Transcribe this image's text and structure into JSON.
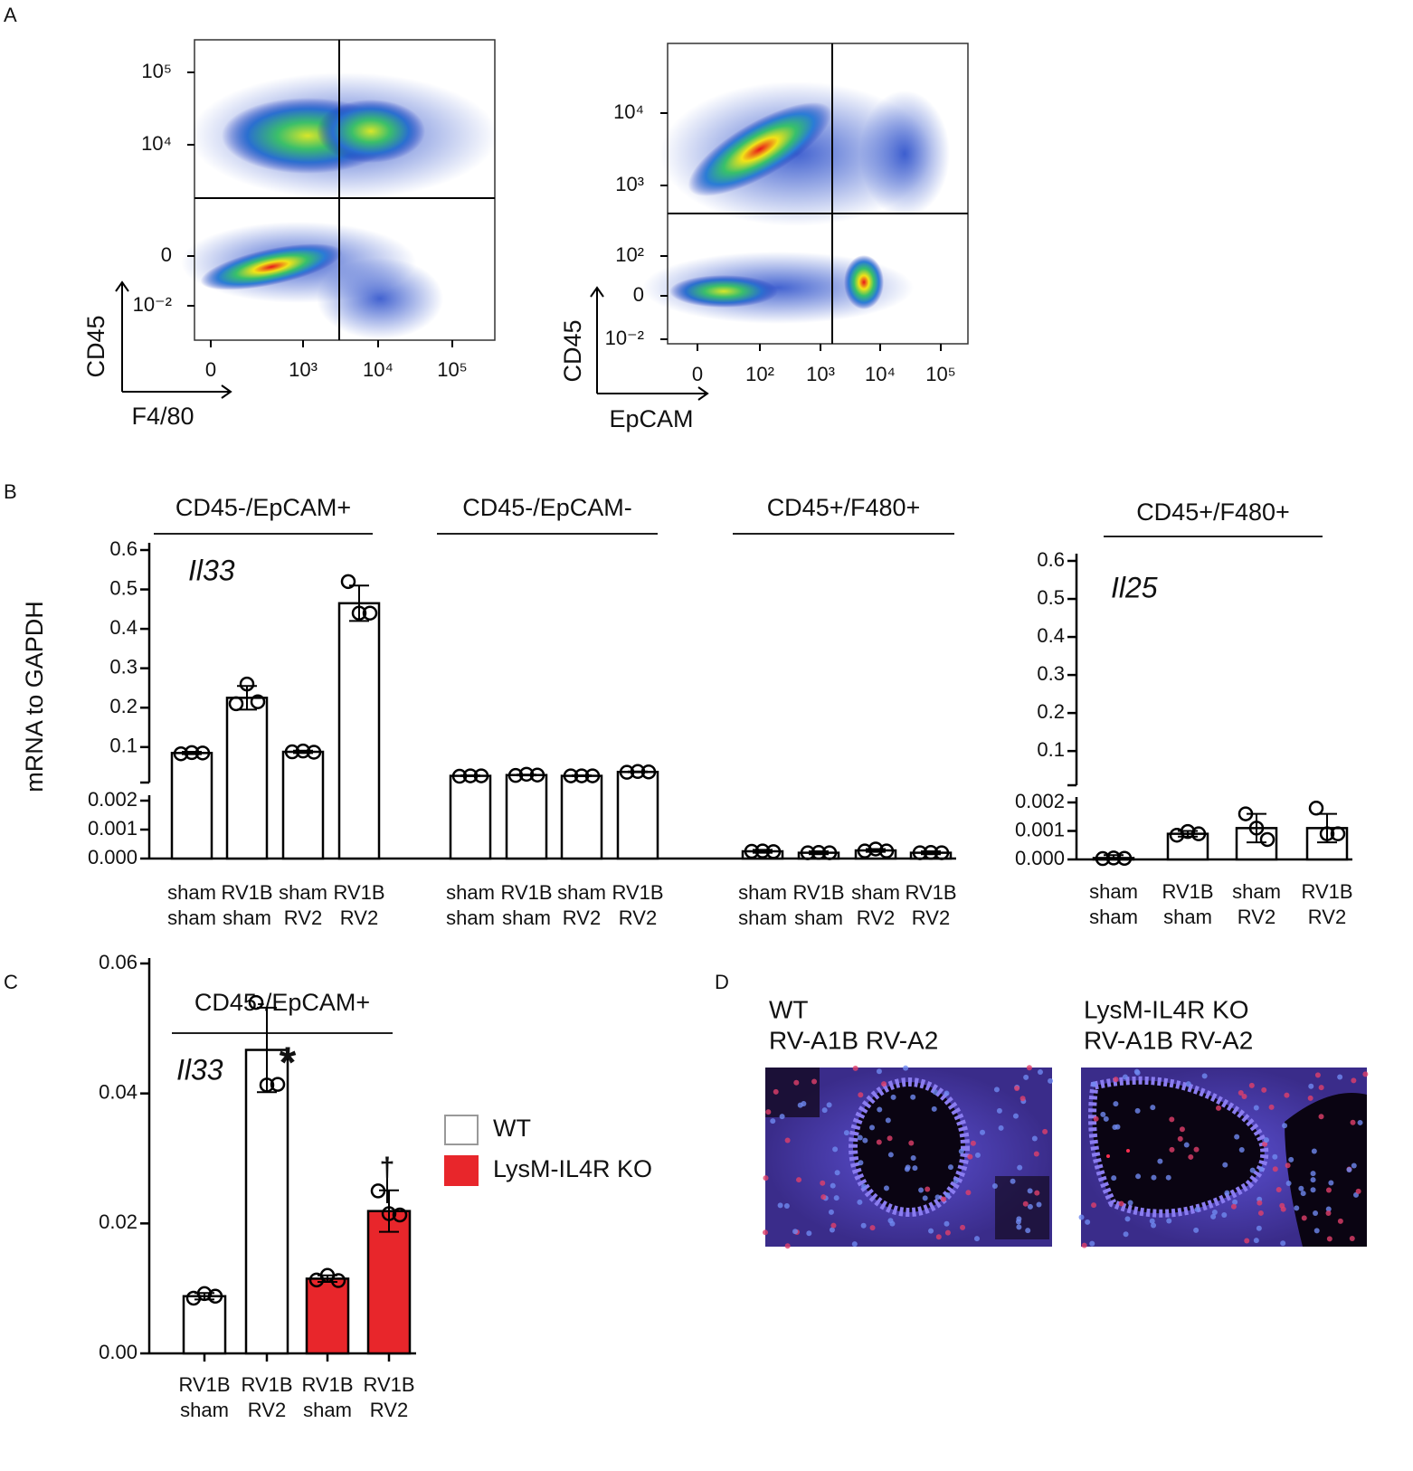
{
  "panel_labels": [
    "A",
    "B",
    "C",
    "D"
  ],
  "chart_data": [
    {
      "type": "flow",
      "xlabel": "F4/80",
      "ylabel": "CD45",
      "xtick_labels": [
        "0",
        "10³",
        "10⁴",
        "10⁵"
      ],
      "ytick_labels": [
        "10⁵",
        "10⁴",
        "0",
        "10⁻²"
      ]
    },
    {
      "type": "flow",
      "xlabel": "EpCAM",
      "ylabel": "CD45",
      "xtick_labels": [
        "0",
        "10²",
        "10³",
        "10⁴",
        "10⁵"
      ],
      "ytick_labels": [
        "10⁴",
        "10³",
        "10²",
        "0",
        "10⁻²"
      ]
    },
    {
      "type": "broken_bar",
      "ylabel": "mRNA to GAPDH",
      "color": "#ffffff",
      "ylim_lower": [
        0,
        0.002
      ],
      "yticks_lower": [
        {
          "value": 0,
          "label": "0.000"
        },
        0.001,
        0.002
      ],
      "ylim_upper": [
        0.01,
        0.6
      ],
      "yticks_upper": [
        0.1,
        0.2,
        0.3,
        0.4,
        0.5,
        0.6
      ],
      "groups": [
        {
          "title": "CD45-/EpCAM+",
          "annotation": "Il33",
          "categories": [
            [
              "sham",
              "sham"
            ],
            [
              "RV1B",
              "sham"
            ],
            [
              "sham",
              "RV2"
            ],
            [
              "RV1B",
              "RV2"
            ]
          ],
          "values": [
            0.085,
            0.225,
            0.088,
            0.465
          ],
          "errors": [
            0.003,
            0.03,
            0.003,
            0.045
          ],
          "points": [
            [
              0.083,
              0.086,
              0.085
            ],
            [
              0.21,
              0.26,
              0.215
            ],
            [
              0.088,
              0.09,
              0.087
            ],
            [
              0.52,
              0.44,
              0.44
            ]
          ]
        },
        {
          "title": "CD45-/EpCAM-",
          "categories": [
            [
              "sham",
              "sham"
            ],
            [
              "RV1B",
              "sham"
            ],
            [
              "sham",
              "RV2"
            ],
            [
              "RV1B",
              "RV2"
            ]
          ],
          "values": [
            0.027,
            0.029,
            0.027,
            0.037
          ],
          "errors": [
            0.001,
            0.001,
            0.001,
            0.001
          ],
          "points": [
            [
              0.026,
              0.027,
              0.027
            ],
            [
              0.028,
              0.031,
              0.029
            ],
            [
              0.027,
              0.027,
              0.027
            ],
            [
              0.036,
              0.038,
              0.037
            ]
          ]
        },
        {
          "title": "CD45+/F480+",
          "categories": [
            [
              "sham",
              "sham"
            ],
            [
              "RV1B",
              "sham"
            ],
            [
              "sham",
              "RV2"
            ],
            [
              "RV1B",
              "RV2"
            ]
          ],
          "values": [
            0.00025,
            0.0002,
            0.00028,
            0.0002
          ],
          "errors": [
            5e-05,
            5e-05,
            5e-05,
            5e-05
          ],
          "points": [
            [
              0.00025,
              0.00026,
              0.00024
            ],
            [
              0.0002,
              0.00021,
              0.0002
            ],
            [
              0.00026,
              0.00033,
              0.00026
            ],
            [
              0.0002,
              0.00021,
              0.0002
            ]
          ]
        }
      ]
    },
    {
      "type": "broken_bar",
      "color": "#ffffff",
      "ylim_lower": [
        0,
        0.002
      ],
      "yticks_lower": [
        {
          "value": 0,
          "label": "0.000"
        },
        0.001,
        0.002
      ],
      "ylim_upper": [
        0.01,
        0.6
      ],
      "yticks_upper": [
        0.1,
        0.2,
        0.3,
        0.4,
        0.5,
        0.6
      ],
      "groups": [
        {
          "title": "CD45+/F480+",
          "annotation": "Il25",
          "categories": [
            [
              "sham",
              "sham"
            ],
            [
              "RV1B",
              "sham"
            ],
            [
              "sham",
              "RV2"
            ],
            [
              "RV1B",
              "RV2"
            ]
          ],
          "values": [
            5e-05,
            0.0009,
            0.0011,
            0.0011
          ],
          "errors": [
            0.0001,
            0.0001,
            0.0005,
            0.0005
          ],
          "points": [
            [
              3e-05,
              5e-05,
              4e-05
            ],
            [
              0.00085,
              0.00098,
              0.0009
            ],
            [
              0.0016,
              0.0011,
              0.0007
            ],
            [
              0.0018,
              0.0009,
              0.0009
            ]
          ]
        }
      ]
    },
    {
      "type": "bar",
      "title": "CD45-/EpCAM+",
      "annotation": "Il33",
      "categories": [
        [
          "RV1B",
          "sham"
        ],
        [
          "RV1B",
          "RV2"
        ],
        [
          "RV1B",
          "sham"
        ],
        [
          "RV1B",
          "RV2"
        ]
      ],
      "values": [
        0.0088,
        0.0467,
        0.0115,
        0.0219
      ],
      "errors": [
        0.0005,
        0.0065,
        0.0005,
        0.0032
      ],
      "points": [
        [
          0.0085,
          0.0092,
          0.0088
        ],
        [
          0.054,
          0.0413,
          0.0414
        ],
        [
          0.0113,
          0.012,
          0.0112
        ],
        [
          0.025,
          0.0215,
          0.0213
        ]
      ],
      "colors": [
        "#ffffff",
        "#ffffff",
        "#e8262b",
        "#e8262b"
      ],
      "significance": [
        "*",
        "†"
      ],
      "ylim": [
        0,
        0.06
      ],
      "yticks": [
        {
          "value": 0,
          "label": "0.00"
        },
        0.02,
        0.04,
        0.06
      ],
      "legend": [
        {
          "name": "WT",
          "color": "#ffffff"
        },
        {
          "name": "LysM-IL4R KO",
          "color": "#e8262b"
        }
      ]
    }
  ],
  "images": [
    {
      "title": [
        "WT",
        "RV-A1B RV-A2"
      ]
    },
    {
      "title": [
        "LysM-IL4R KO",
        "RV-A1B RV-A2"
      ]
    }
  ]
}
